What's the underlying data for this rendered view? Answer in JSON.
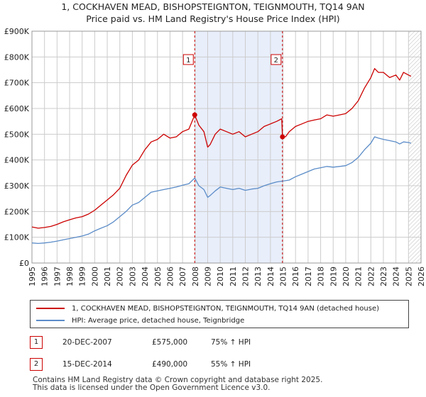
{
  "header": {
    "title": "1, COCKHAVEN MEAD, BISHOPSTEIGNTON, TEIGNMOUTH, TQ14 9AN",
    "subtitle": "Price paid vs. HM Land Registry's House Price Index (HPI)"
  },
  "colors": {
    "property": "#cc0000",
    "hpi": "#5b8cc8",
    "band": "#e8eefa",
    "grid": "#cccccc"
  },
  "chart_data": {
    "type": "line",
    "xlim": [
      1995,
      2026
    ],
    "ylim": [
      0,
      900000
    ],
    "y_ticks": [
      {
        "value": 0,
        "label": "£0"
      },
      {
        "value": 100000,
        "label": "£100K"
      },
      {
        "value": 200000,
        "label": "£200K"
      },
      {
        "value": 300000,
        "label": "£300K"
      },
      {
        "value": 400000,
        "label": "£400K"
      },
      {
        "value": 500000,
        "label": "£500K"
      },
      {
        "value": 600000,
        "label": "£600K"
      },
      {
        "value": 700000,
        "label": "£700K"
      },
      {
        "value": 800000,
        "label": "£800K"
      },
      {
        "value": 900000,
        "label": "£900K"
      }
    ],
    "x_ticks": [
      "1995",
      "1996",
      "1997",
      "1998",
      "1999",
      "2000",
      "2001",
      "2002",
      "2003",
      "2004",
      "2005",
      "2006",
      "2007",
      "2008",
      "2009",
      "2010",
      "2011",
      "2012",
      "2013",
      "2014",
      "2015",
      "2016",
      "2017",
      "2018",
      "2019",
      "2020",
      "2021",
      "2022",
      "2023",
      "2024",
      "2025",
      "2026"
    ],
    "shaded_band": [
      2007.97,
      2014.96
    ],
    "hatch_from": 2025.0,
    "series": [
      {
        "name": "1, COCKHAVEN MEAD, BISHOPSTEIGNTON, TEIGNMOUTH, TQ14 9AN (detached house)",
        "color": "#cc0000",
        "x": [
          1995.0,
          1995.5,
          1996.0,
          1996.5,
          1997.0,
          1997.5,
          1998.0,
          1998.5,
          1999.0,
          1999.5,
          2000.0,
          2000.5,
          2001.0,
          2001.5,
          2002.0,
          2002.5,
          2003.0,
          2003.5,
          2004.0,
          2004.5,
          2005.0,
          2005.5,
          2006.0,
          2006.5,
          2007.0,
          2007.5,
          2007.97,
          2008.3,
          2008.7,
          2009.0,
          2009.2,
          2009.6,
          2010.0,
          2010.5,
          2011.0,
          2011.5,
          2012.0,
          2012.5,
          2013.0,
          2013.5,
          2014.0,
          2014.5,
          2014.9,
          2014.96,
          2015.2,
          2015.5,
          2016.0,
          2016.5,
          2017.0,
          2017.5,
          2018.0,
          2018.5,
          2019.0,
          2019.5,
          2020.0,
          2020.5,
          2021.0,
          2021.5,
          2022.0,
          2022.3,
          2022.6,
          2023.0,
          2023.5,
          2024.0,
          2024.3,
          2024.6,
          2025.0,
          2025.2
        ],
        "values": [
          140000,
          135000,
          138000,
          142000,
          150000,
          160000,
          168000,
          175000,
          180000,
          190000,
          205000,
          225000,
          245000,
          265000,
          290000,
          340000,
          380000,
          400000,
          440000,
          470000,
          480000,
          500000,
          485000,
          490000,
          510000,
          520000,
          575000,
          535000,
          510000,
          450000,
          460000,
          500000,
          520000,
          510000,
          500000,
          510000,
          490000,
          500000,
          510000,
          530000,
          540000,
          550000,
          560000,
          490000,
          490000,
          510000,
          530000,
          540000,
          550000,
          555000,
          560000,
          575000,
          570000,
          575000,
          580000,
          600000,
          630000,
          680000,
          720000,
          755000,
          740000,
          740000,
          720000,
          730000,
          710000,
          740000,
          730000,
          725000
        ]
      },
      {
        "name": "HPI: Average price, detached house, Teignbridge",
        "color": "#5b8cc8",
        "x": [
          1995.0,
          1995.5,
          1996.0,
          1996.5,
          1997.0,
          1997.5,
          1998.0,
          1998.5,
          1999.0,
          1999.5,
          2000.0,
          2000.5,
          2001.0,
          2001.5,
          2002.0,
          2002.5,
          2003.0,
          2003.5,
          2004.0,
          2004.5,
          2005.0,
          2005.5,
          2006.0,
          2006.5,
          2007.0,
          2007.5,
          2007.97,
          2008.3,
          2008.7,
          2009.0,
          2009.2,
          2009.6,
          2010.0,
          2010.5,
          2011.0,
          2011.5,
          2012.0,
          2012.5,
          2013.0,
          2013.5,
          2014.0,
          2014.5,
          2014.96,
          2015.5,
          2016.0,
          2016.5,
          2017.0,
          2017.5,
          2018.0,
          2018.5,
          2019.0,
          2019.5,
          2020.0,
          2020.5,
          2021.0,
          2021.5,
          2022.0,
          2022.3,
          2022.6,
          2023.0,
          2023.5,
          2024.0,
          2024.3,
          2024.6,
          2025.0,
          2025.2
        ],
        "values": [
          78000,
          76000,
          78000,
          81000,
          85000,
          90000,
          95000,
          100000,
          105000,
          112000,
          125000,
          135000,
          145000,
          160000,
          180000,
          200000,
          225000,
          235000,
          255000,
          275000,
          280000,
          285000,
          290000,
          295000,
          302000,
          308000,
          330000,
          300000,
          285000,
          255000,
          262000,
          280000,
          295000,
          290000,
          285000,
          290000,
          282000,
          287000,
          290000,
          300000,
          308000,
          315000,
          318000,
          322000,
          335000,
          345000,
          355000,
          365000,
          370000,
          375000,
          372000,
          375000,
          378000,
          390000,
          410000,
          440000,
          465000,
          490000,
          485000,
          480000,
          475000,
          470000,
          462000,
          470000,
          468000,
          465000
        ]
      }
    ],
    "markers": [
      {
        "label": "1",
        "x": 2007.97,
        "y": 575000
      },
      {
        "label": "2",
        "x": 2014.96,
        "y": 490000
      }
    ]
  },
  "transactions": [
    {
      "num": "1",
      "date": "20-DEC-2007",
      "price": "£575,000",
      "hpi": "75% ↑ HPI"
    },
    {
      "num": "2",
      "date": "15-DEC-2014",
      "price": "£490,000",
      "hpi": "55% ↑ HPI"
    }
  ],
  "footer": {
    "line1": "Contains HM Land Registry data © Crown copyright and database right 2025.",
    "line2": "This data is licensed under the Open Government Licence v3.0."
  }
}
